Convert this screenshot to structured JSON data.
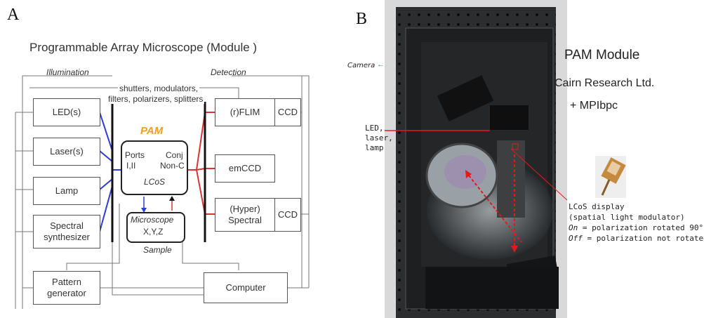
{
  "panels": {
    "a_letter": "A",
    "b_letter": "B"
  },
  "diagram": {
    "title": "Programmable Array Microscope (Module )",
    "section_illumination": "Illumination",
    "section_detection": "Detection",
    "components_note_line1": "shutters, modulators,",
    "components_note_line2": "filters, polarizers, splitters",
    "sources": {
      "led": "LED(s)",
      "laser": "Laser(s)",
      "lamp": "Lamp",
      "spectral_line1": "Spectral",
      "spectral_line2": "synthesizer"
    },
    "pam": {
      "title": "PAM",
      "ports_line1": "Ports",
      "ports_line2": "I,II",
      "conj_line1": "Conj",
      "conj_line2": "Non-C",
      "lcos": "LCoS"
    },
    "microscope": {
      "title": "Microscope",
      "axes": "X,Y,Z",
      "sample": "Sample"
    },
    "detectors": {
      "flim": "(r)FLIM",
      "ccd1": "CCD",
      "emccd": "emCCD",
      "hyper_line1": "(Hyper)",
      "hyper_line2": "Spectral",
      "ccd2": "CCD"
    },
    "pattern_line1": "Pattern",
    "pattern_line2": "generator",
    "computer": "Computer",
    "colors": {
      "blue": "#2b3bd6",
      "red": "#d93434",
      "pam_orange": "#f0a020"
    }
  },
  "photo": {
    "title": "PAM Module",
    "company": "Cairn Research Ltd.",
    "partner": "+ MPIbpc",
    "camera": "Camera",
    "source_line1": "LED,",
    "source_line2": "laser,",
    "source_line3": "lamp",
    "lcos_line1": "LCoS display",
    "lcos_line2": "(spatial light modulator)",
    "on_word": "On",
    "on_rest": "= polarization rotated 90°",
    "off_word": "Off",
    "off_rest": "= polarization not rotated"
  }
}
